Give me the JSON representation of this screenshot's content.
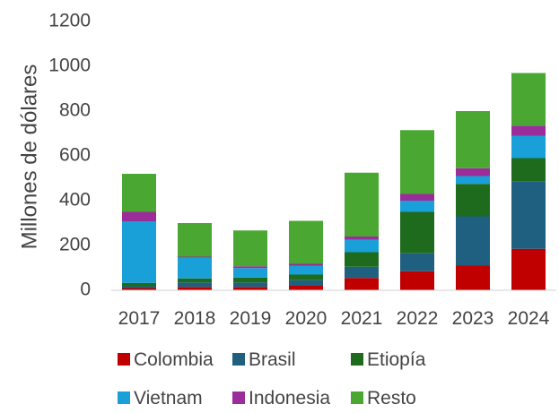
{
  "chart_data": {
    "type": "bar",
    "stacked": true,
    "title": "",
    "xlabel": "",
    "ylabel": "Millones de dólares",
    "ylim": [
      0,
      1200
    ],
    "yticks": [
      0,
      200,
      400,
      600,
      800,
      1000,
      1200
    ],
    "grid": false,
    "legend_position": "bottom",
    "categories": [
      "2017",
      "2018",
      "2019",
      "2020",
      "2021",
      "2022",
      "2023",
      "2024"
    ],
    "series": [
      {
        "name": "Colombia",
        "color": "#c00000",
        "values": [
          10,
          15,
          15,
          20,
          55,
          85,
          110,
          185
        ]
      },
      {
        "name": "Brasil",
        "color": "#1f5f7f",
        "values": [
          8,
          20,
          20,
          25,
          50,
          80,
          220,
          300
        ]
      },
      {
        "name": "Etiopía",
        "color": "#1e6b1e",
        "values": [
          15,
          18,
          22,
          25,
          65,
          185,
          145,
          105
        ]
      },
      {
        "name": "Vietnam",
        "color": "#1aa0d8",
        "values": [
          275,
          92,
          42,
          40,
          55,
          50,
          35,
          100
        ]
      },
      {
        "name": "Indonesia",
        "color": "#9b2d9b",
        "values": [
          42,
          5,
          8,
          8,
          15,
          30,
          35,
          45
        ]
      },
      {
        "name": "Resto",
        "color": "#4aa832",
        "values": [
          170,
          150,
          160,
          192,
          285,
          285,
          255,
          235
        ]
      }
    ]
  }
}
